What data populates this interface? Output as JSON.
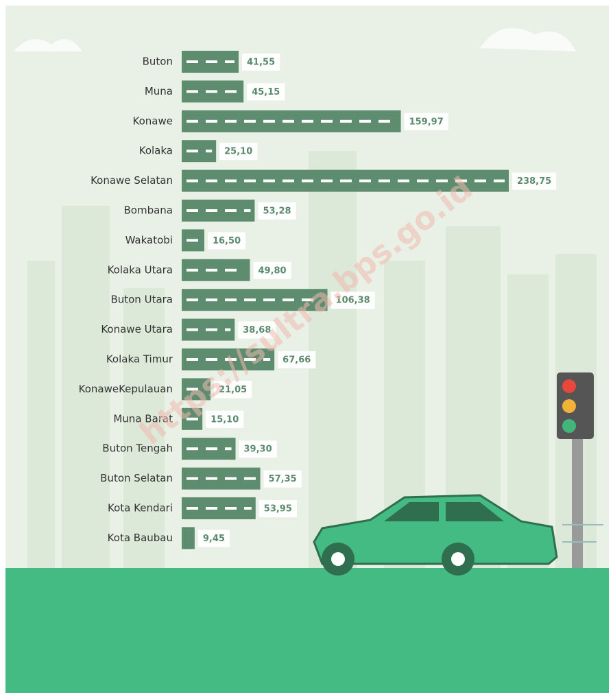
{
  "chart_data": {
    "type": "bar",
    "orientation": "horizontal",
    "categories": [
      "Buton",
      "Muna",
      "Konawe",
      "Kolaka",
      "Konawe Selatan",
      "Bombana",
      "Wakatobi",
      "Kolaka Utara",
      "Buton Utara",
      "Konawe Utara",
      "Kolaka Timur",
      "KonaweKepulauan",
      "Muna Barat",
      "Buton Tengah",
      "Buton Selatan",
      "Kota Kendari",
      "Kota Baubau"
    ],
    "values": [
      41.55,
      45.15,
      159.97,
      25.1,
      238.75,
      53.28,
      16.5,
      49.8,
      106.38,
      38.68,
      67.66,
      21.05,
      15.1,
      39.3,
      57.35,
      53.95,
      9.45
    ],
    "value_labels": [
      "41,55",
      "45,15",
      "159,97",
      "25,10",
      "238,75",
      "53,28",
      "16,50",
      "49,80",
      "106,38",
      "38,68",
      "67,66",
      "21,05",
      "15,10",
      "39,30",
      "57,35",
      "53,95",
      "9,45"
    ],
    "color": "#5e8c6e",
    "watermark": "https://sultra.bps.go.id"
  }
}
